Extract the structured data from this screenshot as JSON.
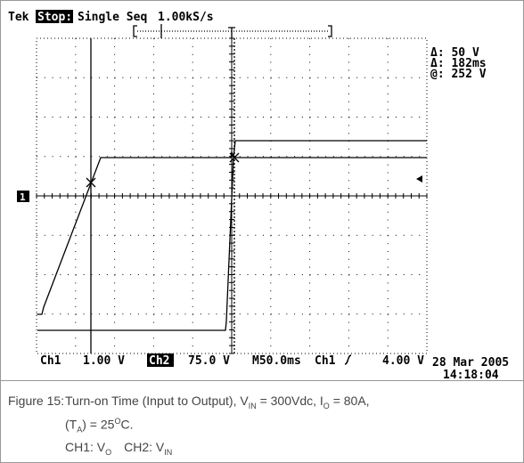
{
  "header": {
    "brand": "Tek",
    "status": "Stop:",
    "mode": "Single Seq",
    "sample_rate": "1.00kS/s"
  },
  "readouts": [
    "Δ: 50 V",
    "Δ: 182ms",
    "@: 252 V"
  ],
  "ch1_marker": "1",
  "footer": {
    "ch1_label": "Ch1",
    "ch1_scale": "1.00 V",
    "ch2_label": "Ch2",
    "ch2_scale": "75.0 V",
    "timebase": "M50.0ms",
    "trigger_source": "Ch1",
    "trigger_level": "4.00 V",
    "date": "28 Mar 2005",
    "time": "14:18:04"
  },
  "caption": {
    "label": "Figure 15:",
    "line1": [
      "Turn-on Time (Input to Output), V",
      "IN",
      " = 300Vdc, I",
      "O",
      " = 80A,"
    ],
    "line2": [
      "(T",
      "A",
      ") = 25",
      "O",
      "C."
    ],
    "line3": [
      "CH1: V",
      "O",
      "CH2: V",
      "IN"
    ]
  }
}
